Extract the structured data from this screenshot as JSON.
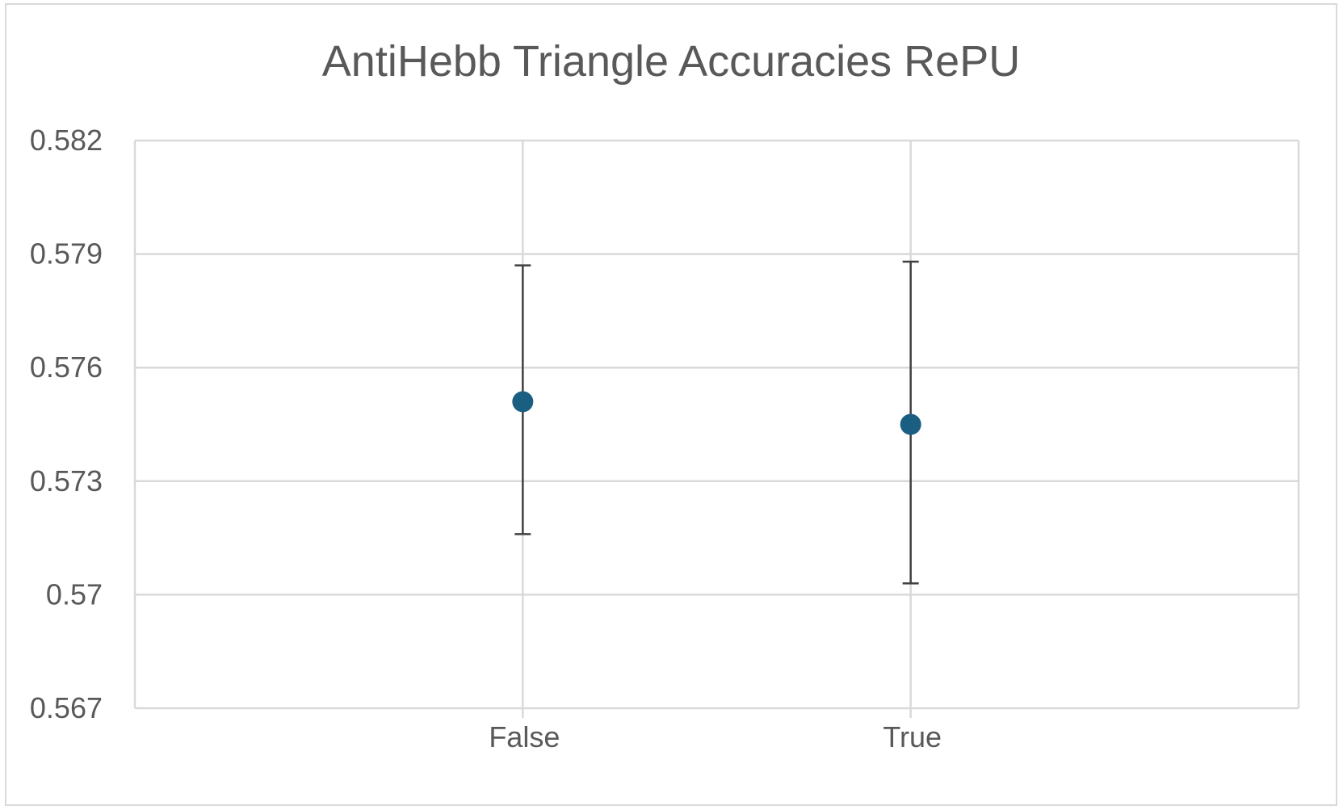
{
  "chart_data": {
    "type": "scatter",
    "title": "AntiHebb Triangle Accuracies RePU",
    "xlabel": "",
    "ylabel": "",
    "categories": [
      "False",
      "True"
    ],
    "series": [
      {
        "values": [
          0.5751,
          0.5745
        ],
        "error_low": [
          0.5716,
          0.5703
        ],
        "error_high": [
          0.5787,
          0.5788
        ]
      }
    ],
    "ylim": [
      0.567,
      0.582
    ],
    "yticks": [
      0.567,
      0.57,
      0.573,
      0.576,
      0.579,
      0.582
    ],
    "ytick_labels": [
      "0.567",
      "0.57",
      "0.573",
      "0.576",
      "0.579",
      "0.582"
    ],
    "grid": true,
    "legend": "none",
    "colors": {
      "marker": "#1a5e82",
      "error_bar": "#404040",
      "grid": "#d9d9d9",
      "text": "#595959"
    }
  }
}
